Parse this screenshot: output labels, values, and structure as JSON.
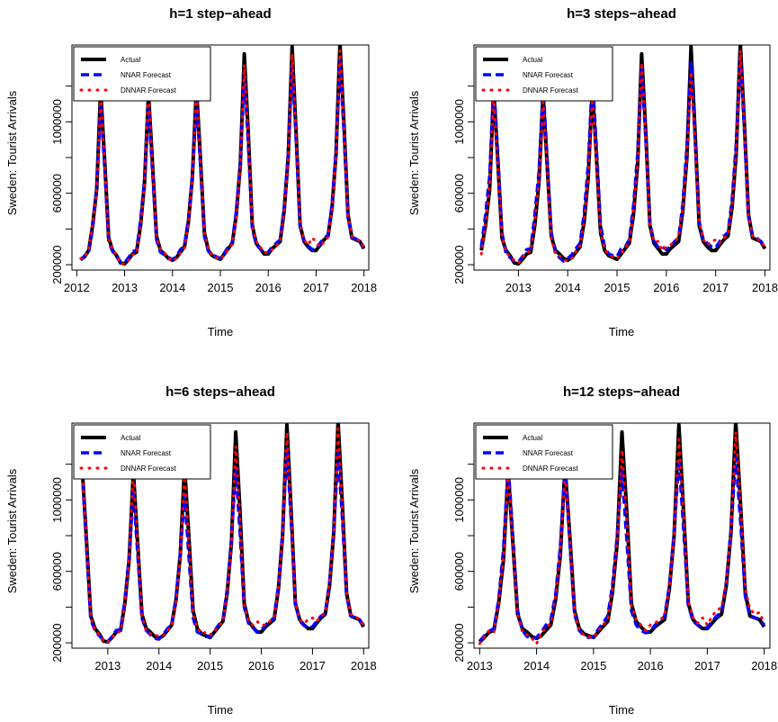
{
  "colors": {
    "actual": "#000000",
    "nnar": "#0000ff",
    "dnnar": "#ff0000"
  },
  "legend_labels": [
    "Actual",
    "NNAR Forecast",
    "DNNAR Forecast"
  ],
  "chart_data": [
    {
      "type": "line",
      "title": "h=1 step−ahead",
      "xlabel": "Time",
      "ylabel": "Sweden: Tourist Arrivals",
      "x_ticks": [
        "2012",
        "2013",
        "2014",
        "2015",
        "2016",
        "2017",
        "2018"
      ],
      "y_ticks": [
        "200000",
        "600000",
        "1000000"
      ],
      "xlim": [
        2011.9,
        2018.1
      ],
      "ylim": [
        170000,
        1430000
      ],
      "legend": "top-left",
      "x_start": 2012.083,
      "x_step": 0.08333,
      "series": [
        {
          "name": "Actual",
          "values": [
            230000,
            245000,
            280000,
            420000,
            620000,
            1180000,
            780000,
            350000,
            280000,
            250000,
            210000,
            205000,
            230000,
            260000,
            270000,
            420000,
            660000,
            1160000,
            760000,
            360000,
            280000,
            260000,
            235000,
            225000,
            240000,
            270000,
            300000,
            440000,
            690000,
            1190000,
            800000,
            380000,
            280000,
            250000,
            240000,
            230000,
            260000,
            290000,
            320000,
            480000,
            760000,
            1380000,
            940000,
            420000,
            320000,
            290000,
            260000,
            260000,
            290000,
            310000,
            330000,
            500000,
            800000,
            1420000,
            940000,
            420000,
            330000,
            300000,
            280000,
            280000,
            310000,
            340000,
            360000,
            520000,
            820000,
            1440000,
            980000,
            480000,
            350000,
            340000,
            330000,
            290000
          ]
        },
        {
          "name": "NNAR Forecast",
          "values": [
            225000,
            250000,
            270000,
            400000,
            640000,
            1100000,
            740000,
            330000,
            275000,
            245000,
            215000,
            210000,
            240000,
            275000,
            280000,
            450000,
            680000,
            1080000,
            720000,
            340000,
            270000,
            255000,
            240000,
            230000,
            245000,
            285000,
            305000,
            460000,
            700000,
            1120000,
            760000,
            360000,
            275000,
            255000,
            245000,
            235000,
            265000,
            300000,
            325000,
            500000,
            780000,
            1260000,
            880000,
            400000,
            315000,
            290000,
            265000,
            270000,
            300000,
            320000,
            340000,
            520000,
            820000,
            1320000,
            900000,
            410000,
            330000,
            305000,
            285000,
            290000,
            320000,
            350000,
            365000,
            540000,
            840000,
            1340000,
            930000,
            460000,
            355000,
            345000,
            330000,
            300000
          ]
        },
        {
          "name": "DNNAR Forecast",
          "values": [
            235000,
            240000,
            285000,
            430000,
            610000,
            1140000,
            770000,
            345000,
            285000,
            255000,
            205000,
            205000,
            225000,
            255000,
            265000,
            410000,
            650000,
            1170000,
            750000,
            355000,
            285000,
            265000,
            235000,
            220000,
            235000,
            265000,
            295000,
            430000,
            680000,
            1180000,
            790000,
            375000,
            285000,
            255000,
            240000,
            230000,
            255000,
            285000,
            315000,
            470000,
            750000,
            1320000,
            920000,
            415000,
            330000,
            300000,
            270000,
            265000,
            285000,
            305000,
            330000,
            495000,
            790000,
            1380000,
            930000,
            425000,
            340000,
            310000,
            350000,
            330000,
            300000,
            330000,
            355000,
            510000,
            810000,
            1400000,
            960000,
            470000,
            360000,
            345000,
            335000,
            300000
          ]
        }
      ]
    },
    {
      "type": "line",
      "title": "h=3 steps−ahead",
      "xlabel": "Time",
      "ylabel": "Sweden: Tourist Arrivals",
      "x_ticks": [
        "2013",
        "2014",
        "2015",
        "2016",
        "2017",
        "2018"
      ],
      "y_ticks": [
        "200000",
        "600000",
        "1000000"
      ],
      "xlim": [
        2012.1,
        2018.1
      ],
      "ylim": [
        170000,
        1430000
      ],
      "legend": "top-left",
      "x_start": 2012.25,
      "x_step": 0.08333,
      "series": [
        {
          "name": "Actual",
          "values": [
            280000,
            420000,
            620000,
            1180000,
            780000,
            350000,
            280000,
            250000,
            210000,
            205000,
            230000,
            260000,
            270000,
            420000,
            660000,
            1160000,
            760000,
            360000,
            280000,
            260000,
            235000,
            225000,
            240000,
            270000,
            300000,
            440000,
            690000,
            1190000,
            800000,
            380000,
            280000,
            250000,
            240000,
            230000,
            260000,
            290000,
            320000,
            480000,
            760000,
            1380000,
            940000,
            420000,
            320000,
            290000,
            260000,
            260000,
            290000,
            310000,
            330000,
            500000,
            800000,
            1420000,
            940000,
            420000,
            330000,
            300000,
            280000,
            280000,
            310000,
            340000,
            360000,
            520000,
            820000,
            1440000,
            980000,
            480000,
            350000,
            340000,
            330000,
            290000
          ]
        },
        {
          "name": "NNAR Forecast",
          "values": [
            300000,
            480000,
            700000,
            1220000,
            820000,
            380000,
            260000,
            240000,
            220000,
            215000,
            245000,
            285000,
            290000,
            480000,
            720000,
            1200000,
            800000,
            380000,
            270000,
            240000,
            220000,
            235000,
            255000,
            290000,
            320000,
            490000,
            760000,
            1260000,
            850000,
            420000,
            300000,
            260000,
            250000,
            245000,
            290000,
            300000,
            340000,
            530000,
            820000,
            1300000,
            900000,
            430000,
            330000,
            300000,
            300000,
            285000,
            300000,
            330000,
            350000,
            540000,
            860000,
            1330000,
            900000,
            440000,
            340000,
            320000,
            300000,
            295000,
            330000,
            360000,
            380000,
            560000,
            880000,
            1360000,
            940000,
            470000,
            360000,
            350000,
            330000,
            300000
          ]
        },
        {
          "name": "DNNAR Forecast",
          "values": [
            260000,
            430000,
            640000,
            1140000,
            760000,
            360000,
            270000,
            245000,
            225000,
            210000,
            240000,
            270000,
            275000,
            440000,
            670000,
            1130000,
            740000,
            350000,
            260000,
            250000,
            230000,
            220000,
            235000,
            275000,
            305000,
            450000,
            690000,
            1150000,
            770000,
            380000,
            290000,
            255000,
            245000,
            235000,
            265000,
            295000,
            325000,
            490000,
            780000,
            1330000,
            910000,
            420000,
            330000,
            330000,
            280000,
            300000,
            310000,
            330000,
            355000,
            520000,
            810000,
            1280000,
            880000,
            440000,
            340000,
            310000,
            330000,
            340000,
            320000,
            350000,
            370000,
            540000,
            830000,
            1400000,
            960000,
            470000,
            360000,
            345000,
            330000,
            300000
          ]
        }
      ]
    },
    {
      "type": "line",
      "title": "h=6 steps−ahead",
      "xlabel": "Time",
      "ylabel": "Sweden: Tourist Arrivals",
      "x_ticks": [
        "2013",
        "2014",
        "2015",
        "2016",
        "2017",
        "2018"
      ],
      "y_ticks": [
        "200000",
        "600000",
        "1000000"
      ],
      "xlim": [
        2012.3,
        2018.1
      ],
      "ylim": [
        170000,
        1430000
      ],
      "legend": "top-left",
      "x_start": 2012.5,
      "x_step": 0.08333,
      "series": [
        {
          "name": "Actual",
          "values": [
            1180000,
            780000,
            350000,
            280000,
            250000,
            210000,
            205000,
            230000,
            260000,
            270000,
            420000,
            660000,
            1160000,
            760000,
            360000,
            280000,
            260000,
            235000,
            225000,
            240000,
            270000,
            300000,
            440000,
            690000,
            1190000,
            800000,
            380000,
            280000,
            250000,
            240000,
            230000,
            260000,
            290000,
            320000,
            480000,
            760000,
            1380000,
            940000,
            420000,
            320000,
            290000,
            260000,
            260000,
            290000,
            310000,
            330000,
            500000,
            800000,
            1420000,
            940000,
            420000,
            330000,
            300000,
            280000,
            280000,
            310000,
            340000,
            360000,
            520000,
            820000,
            1440000,
            980000,
            480000,
            350000,
            340000,
            330000,
            290000
          ]
        },
        {
          "name": "NNAR Forecast",
          "values": [
            1160000,
            740000,
            330000,
            270000,
            240000,
            215000,
            205000,
            235000,
            270000,
            275000,
            440000,
            680000,
            1060000,
            700000,
            340000,
            270000,
            245000,
            225000,
            220000,
            245000,
            280000,
            300000,
            450000,
            700000,
            1030000,
            690000,
            340000,
            260000,
            250000,
            235000,
            235000,
            265000,
            300000,
            325000,
            500000,
            780000,
            1180000,
            820000,
            400000,
            310000,
            285000,
            260000,
            270000,
            300000,
            320000,
            340000,
            520000,
            820000,
            1300000,
            880000,
            420000,
            320000,
            300000,
            280000,
            290000,
            320000,
            350000,
            365000,
            540000,
            840000,
            1260000,
            900000,
            470000,
            350000,
            340000,
            330000,
            300000
          ]
        },
        {
          "name": "DNNAR Forecast",
          "values": [
            1170000,
            770000,
            340000,
            275000,
            245000,
            210000,
            205000,
            230000,
            255000,
            265000,
            420000,
            660000,
            1170000,
            760000,
            360000,
            265000,
            250000,
            240000,
            240000,
            240000,
            270000,
            300000,
            430000,
            680000,
            1150000,
            770000,
            370000,
            280000,
            250000,
            260000,
            245000,
            265000,
            290000,
            320000,
            480000,
            760000,
            1300000,
            900000,
            410000,
            320000,
            300000,
            320000,
            300000,
            300000,
            320000,
            340000,
            510000,
            800000,
            1380000,
            920000,
            420000,
            330000,
            310000,
            330000,
            340000,
            320000,
            350000,
            370000,
            530000,
            830000,
            1400000,
            960000,
            480000,
            360000,
            350000,
            330000,
            300000
          ]
        }
      ]
    },
    {
      "type": "line",
      "title": "h=12 steps−ahead",
      "xlabel": "Time",
      "ylabel": "Sweden: Tourist Arrivals",
      "x_ticks": [
        "2013",
        "2014",
        "2015",
        "2016",
        "2017",
        "2018"
      ],
      "y_ticks": [
        "200000",
        "600000",
        "1000000"
      ],
      "xlim": [
        2012.9,
        2018.1
      ],
      "ylim": [
        170000,
        1430000
      ],
      "legend": "top-left",
      "x_start": 2013.0,
      "x_step": 0.08333,
      "series": [
        {
          "name": "Actual",
          "values": [
            205000,
            230000,
            260000,
            270000,
            420000,
            660000,
            1160000,
            760000,
            360000,
            280000,
            260000,
            235000,
            225000,
            240000,
            270000,
            300000,
            440000,
            690000,
            1190000,
            800000,
            380000,
            280000,
            250000,
            240000,
            230000,
            260000,
            290000,
            320000,
            480000,
            760000,
            1380000,
            940000,
            420000,
            320000,
            290000,
            260000,
            260000,
            290000,
            310000,
            330000,
            500000,
            800000,
            1420000,
            940000,
            420000,
            330000,
            300000,
            280000,
            280000,
            310000,
            340000,
            360000,
            520000,
            820000,
            1440000,
            980000,
            480000,
            350000,
            340000,
            330000,
            290000
          ]
        },
        {
          "name": "NNAR Forecast",
          "values": [
            210000,
            240000,
            265000,
            280000,
            440000,
            720000,
            1200000,
            800000,
            380000,
            270000,
            235000,
            225000,
            230000,
            260000,
            300000,
            330000,
            470000,
            740000,
            1180000,
            760000,
            360000,
            270000,
            240000,
            230000,
            235000,
            275000,
            310000,
            350000,
            520000,
            800000,
            1160000,
            780000,
            380000,
            300000,
            270000,
            255000,
            265000,
            300000,
            320000,
            350000,
            520000,
            820000,
            1230000,
            840000,
            410000,
            320000,
            300000,
            285000,
            285000,
            320000,
            350000,
            370000,
            540000,
            840000,
            1240000,
            880000,
            460000,
            350000,
            340000,
            330000,
            300000
          ]
        },
        {
          "name": "DNNAR Forecast",
          "values": [
            195000,
            235000,
            270000,
            260000,
            430000,
            670000,
            1150000,
            760000,
            355000,
            260000,
            245000,
            225000,
            195000,
            255000,
            285000,
            310000,
            460000,
            700000,
            1150000,
            790000,
            370000,
            270000,
            245000,
            235000,
            230000,
            265000,
            300000,
            330000,
            500000,
            770000,
            1280000,
            900000,
            410000,
            330000,
            300000,
            270000,
            300000,
            310000,
            330000,
            350000,
            510000,
            800000,
            1340000,
            930000,
            430000,
            340000,
            310000,
            340000,
            300000,
            350000,
            380000,
            400000,
            540000,
            830000,
            1380000,
            980000,
            500000,
            390000,
            360000,
            370000,
            310000
          ]
        }
      ]
    }
  ]
}
